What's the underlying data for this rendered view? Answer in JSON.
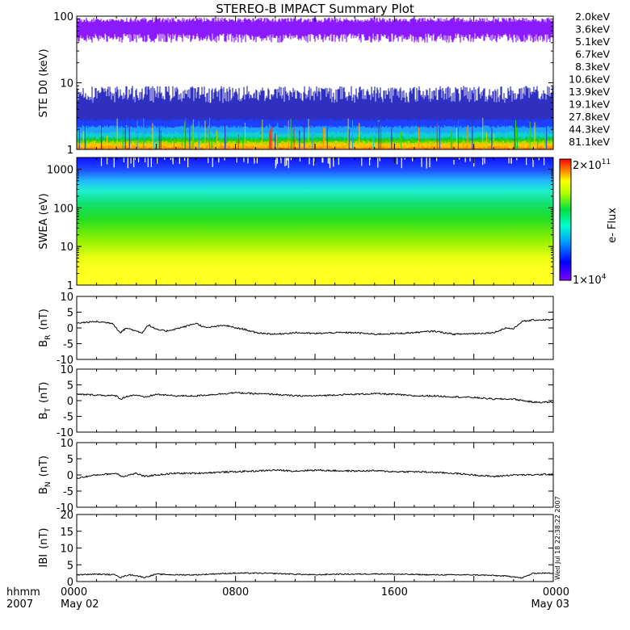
{
  "chart_data": [
    {
      "type": "line",
      "title": "STEREO-B IMPACT Summary Plot",
      "ylabel": "STE D0 (keV)",
      "scale": "log",
      "ylim": [
        1,
        100
      ],
      "yticks": [
        "1",
        "10",
        "100"
      ],
      "legend_placement": "right",
      "series": [
        {
          "name": "2.0keV",
          "color": "#8c1aff",
          "band": [
            50,
            95
          ]
        },
        {
          "name": "3.6keV",
          "color": "#3030c0",
          "band": [
            2.8,
            9
          ]
        },
        {
          "name": "5.1keV",
          "color": "#1f3fff",
          "band": [
            2.2,
            6
          ]
        },
        {
          "name": "6.7keV",
          "color": "#1ea0ff",
          "band": [
            1.8,
            3
          ]
        },
        {
          "name": "8.3keV",
          "color": "#10d0d0",
          "band": [
            1.5,
            2.8
          ]
        },
        {
          "name": "10.6keV",
          "color": "#00c850",
          "band": [
            1.4,
            2.6
          ]
        },
        {
          "name": "13.9keV",
          "color": "#40d000",
          "band": [
            1.3,
            2.5
          ]
        },
        {
          "name": "19.1keV",
          "color": "#c8d200",
          "band": [
            1.2,
            2.4
          ]
        },
        {
          "name": "27.8keV",
          "color": "#ffc800",
          "band": [
            1.1,
            2.3
          ]
        },
        {
          "name": "44.3keV",
          "color": "#ff9000",
          "band": [
            1,
            2.3
          ]
        },
        {
          "name": "81.1keV",
          "color": "#e83010",
          "band": [
            1,
            2.3
          ]
        }
      ]
    },
    {
      "type": "heatmap",
      "ylabel": "SWEA (eV)",
      "scale": "log",
      "ylim": [
        1,
        2000
      ],
      "yticks": [
        "1",
        "10",
        "100",
        "1000"
      ],
      "colorbar": {
        "label": "e- Flux",
        "max_label": "2×10",
        "max_exp": "11",
        "min_label": "1×10",
        "min_exp": "4"
      }
    },
    {
      "type": "line",
      "ylabel_main": "B",
      "ylabel_sub": "R",
      "ylabel_unit": "(nT)",
      "ylim": [
        -10,
        10
      ],
      "yticks": [
        "-10",
        "-5",
        "0",
        "5",
        "10"
      ],
      "x": [
        0,
        0.5,
        1,
        1.8,
        2.2,
        2.5,
        3,
        3.3,
        3.6,
        4,
        4.5,
        5,
        5.5,
        6,
        6.5,
        7,
        7.5,
        8,
        8.5,
        9,
        10,
        11,
        12,
        13,
        14,
        15,
        16,
        17,
        18,
        19,
        20,
        21,
        21.6,
        22,
        22.4,
        23,
        24
      ],
      "values": [
        1.5,
        1.8,
        2,
        1.5,
        -1.5,
        0,
        -1,
        -1.5,
        1,
        -0.5,
        -1,
        -0.3,
        0.5,
        1.5,
        0,
        0.5,
        0.8,
        0,
        -0.5,
        -1.5,
        -2,
        -1.5,
        -1.8,
        -1.5,
        -1.5,
        -2,
        -1.8,
        -1.5,
        -1,
        -2,
        -1.8,
        -1.5,
        0,
        -0.3,
        2,
        2.5,
        2.6
      ]
    },
    {
      "type": "line",
      "ylabel_main": "B",
      "ylabel_sub": "T",
      "ylabel_unit": "(nT)",
      "ylim": [
        -10,
        10
      ],
      "yticks": [
        "-10",
        "-5",
        "0",
        "5",
        "10"
      ],
      "x": [
        0,
        1,
        2,
        2.2,
        2.6,
        3,
        3.4,
        4,
        5,
        6,
        7,
        8,
        9,
        10,
        11,
        12,
        13,
        14,
        15,
        16,
        17,
        18,
        19,
        20,
        21,
        22,
        23,
        24
      ],
      "values": [
        2,
        1.8,
        1.5,
        0.5,
        1.5,
        1.8,
        1,
        2,
        1.5,
        1.5,
        2,
        2.5,
        2.2,
        2,
        1.5,
        1.5,
        1.8,
        2,
        2.2,
        2,
        1.5,
        1.5,
        1.2,
        1,
        0.5,
        0.5,
        -0.5,
        -0.5
      ]
    },
    {
      "type": "line",
      "ylabel_main": "B",
      "ylabel_sub": "N",
      "ylabel_unit": "(nT)",
      "ylim": [
        -10,
        10
      ],
      "yticks": [
        "-10",
        "-5",
        "0",
        "5",
        "10"
      ],
      "x": [
        0,
        1,
        2,
        2.3,
        3,
        3.4,
        4,
        5,
        6,
        7,
        8,
        9,
        10,
        11,
        12,
        13,
        14,
        15,
        16,
        17,
        18,
        19,
        20,
        21,
        22,
        23,
        24
      ],
      "values": [
        -1,
        0,
        0.5,
        -0.5,
        0.5,
        -0.5,
        0,
        0.5,
        0.5,
        0.8,
        1,
        1.2,
        1.5,
        1.2,
        1.5,
        1.3,
        1.2,
        1.3,
        1,
        1,
        0.8,
        0.5,
        0,
        -0.5,
        0,
        0,
        0.3
      ]
    },
    {
      "type": "line",
      "ylabel_main": "IBI",
      "ylabel_unit": "(nT)",
      "ylim": [
        0,
        20
      ],
      "yticks": [
        "0",
        "5",
        "10",
        "15",
        "20"
      ],
      "side_text": "Wed Jul 18 22:38:22 2007",
      "x": [
        0,
        1,
        2,
        2.2,
        2.6,
        3,
        3.4,
        4,
        5,
        6,
        7,
        8,
        9,
        10,
        11,
        12,
        13,
        14,
        15,
        16,
        17,
        18,
        19,
        20,
        21,
        22,
        22.4,
        23,
        24
      ],
      "values": [
        2,
        2.2,
        2,
        1.2,
        2,
        1.8,
        1.2,
        2.2,
        2,
        2,
        2.3,
        2.5,
        2.5,
        2.4,
        2.2,
        2,
        2.2,
        2.2,
        2.3,
        2.2,
        2.1,
        2,
        2,
        2,
        1.8,
        1.5,
        1,
        2.5,
        2.5
      ]
    }
  ],
  "xaxis": {
    "range_hours": [
      0,
      24
    ],
    "corner_top": "hhmm",
    "corner_bottom": "2007",
    "ticks": [
      {
        "hour": 0,
        "top": "0000",
        "bottom": "May 02"
      },
      {
        "hour": 8,
        "top": "0800",
        "bottom": ""
      },
      {
        "hour": 16,
        "top": "1600",
        "bottom": ""
      },
      {
        "hour": 24,
        "top": "0000",
        "bottom": "May 03"
      }
    ]
  }
}
